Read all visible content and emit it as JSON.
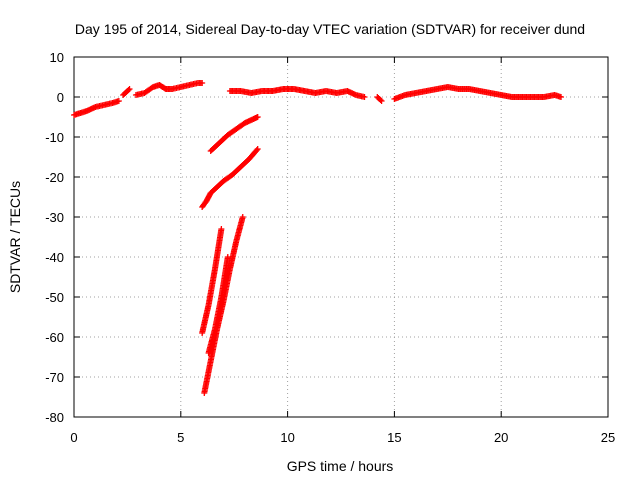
{
  "chart_data": {
    "type": "scatter",
    "title": "Day 195 of 2014, Sidereal Day-to-day VTEC variation (SDTVAR) for receiver dund",
    "xlabel": "GPS time / hours",
    "ylabel": "SDTVAR / TECUs",
    "xlim": [
      0,
      25
    ],
    "ylim": [
      -80,
      10
    ],
    "xticks": [
      0,
      5,
      10,
      15,
      20,
      25
    ],
    "yticks": [
      10,
      0,
      -10,
      -20,
      -30,
      -40,
      -50,
      -60,
      -70,
      -80
    ],
    "grid": true,
    "marker": "+",
    "series": [
      {
        "name": "SDTVAR",
        "color": "#ff0000",
        "segments": [
          {
            "x": [
              0.0,
              0.3,
              0.6,
              1.0,
              1.4,
              1.8,
              2.1
            ],
            "y": [
              -4.5,
              -4.0,
              -3.5,
              -2.5,
              -2.0,
              -1.5,
              -1.0
            ]
          },
          {
            "x": [
              2.3,
              2.5,
              2.6
            ],
            "y": [
              0.5,
              1.5,
              2.0
            ]
          },
          {
            "x": [
              2.9,
              3.3,
              3.7,
              4.0,
              4.3,
              4.6,
              5.0,
              5.4,
              5.8,
              6.0
            ],
            "y": [
              0.5,
              1.0,
              2.5,
              3.0,
              2.0,
              2.0,
              2.5,
              3.0,
              3.5,
              3.5
            ]
          },
          {
            "x": [
              7.3,
              7.8,
              8.3,
              8.8,
              9.3,
              9.8,
              10.3,
              10.8,
              11.3,
              11.8,
              12.3,
              12.8,
              13.2,
              13.6
            ],
            "y": [
              1.5,
              1.5,
              1.0,
              1.5,
              1.5,
              2.0,
              2.0,
              1.5,
              1.0,
              1.5,
              1.0,
              1.5,
              0.5,
              0.0
            ]
          },
          {
            "x": [
              14.2,
              14.4
            ],
            "y": [
              0.0,
              -1.0
            ]
          },
          {
            "x": [
              15.0,
              15.5,
              16.0,
              16.5,
              17.0,
              17.5,
              18.0,
              18.5,
              19.0,
              19.5,
              20.0,
              20.5,
              21.0,
              21.5,
              22.0,
              22.5,
              22.8
            ],
            "y": [
              -0.5,
              0.5,
              1.0,
              1.5,
              2.0,
              2.5,
              2.0,
              2.0,
              1.5,
              1.0,
              0.5,
              0.0,
              0.0,
              0.0,
              0.0,
              0.5,
              0.0
            ]
          },
          {
            "x": [
              6.4,
              6.8,
              7.2,
              7.6,
              8.0,
              8.4,
              8.6
            ],
            "y": [
              -13.5,
              -11.5,
              -9.5,
              -8.0,
              -6.5,
              -5.5,
              -5.0
            ]
          },
          {
            "x": [
              6.0,
              6.2,
              6.4,
              6.7,
              7.0,
              7.4,
              7.8,
              8.2,
              8.6
            ],
            "y": [
              -27.5,
              -26.0,
              -24.0,
              -22.5,
              -21.0,
              -19.5,
              -17.5,
              -15.5,
              -13.0
            ]
          },
          {
            "x": [
              6.0,
              6.3,
              6.6,
              6.9
            ],
            "y": [
              -59.0,
              -52.0,
              -43.0,
              -33.0
            ]
          },
          {
            "x": [
              6.1,
              6.4,
              6.7,
              7.0,
              7.3,
              7.6,
              7.9
            ],
            "y": [
              -74.0,
              -66.0,
              -58.0,
              -51.0,
              -43.0,
              -36.0,
              -30.0
            ]
          },
          {
            "x": [
              6.3,
              6.6,
              6.9,
              7.2
            ],
            "y": [
              -64.0,
              -58.0,
              -50.0,
              -40.0
            ]
          }
        ]
      }
    ]
  }
}
